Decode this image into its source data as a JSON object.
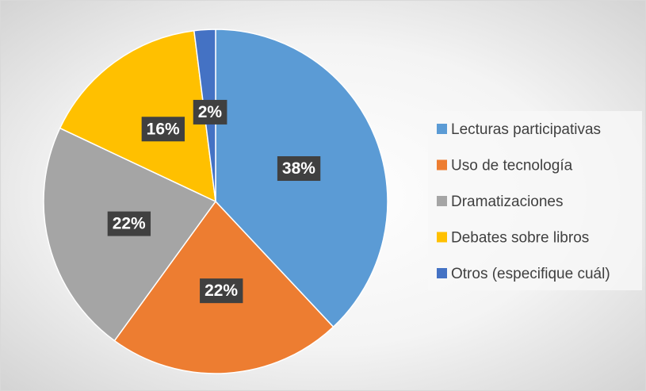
{
  "chart_data": {
    "type": "pie",
    "categories": [
      "Lecturas participativas",
      "Uso de tecnología",
      "Dramatizaciones",
      "Debates sobre libros",
      "Otros (especifique cuál)"
    ],
    "values": [
      38,
      22,
      22,
      16,
      2
    ],
    "value_labels": [
      "38%",
      "22%",
      "22%",
      "16%",
      "2%"
    ],
    "colors": [
      "#5b9bd5",
      "#ed7d31",
      "#a5a5a5",
      "#ffc000",
      "#4472c4"
    ],
    "legend": "right"
  }
}
